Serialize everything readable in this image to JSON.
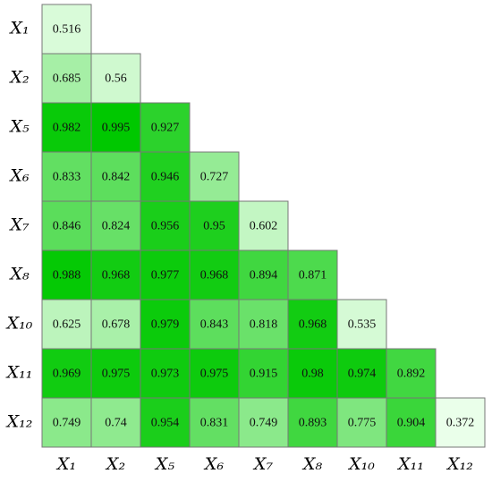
{
  "chart_data": {
    "type": "heatmap",
    "row_labels": [
      "X₁",
      "X₂",
      "X₅",
      "X₆",
      "X₇",
      "X₈",
      "X₁₀",
      "X₁₁",
      "X₁₂"
    ],
    "col_labels": [
      "X₁",
      "X₂",
      "X₅",
      "X₆",
      "X₇",
      "X₈",
      "X₁₀",
      "X₁₁",
      "X₁₂"
    ],
    "values": [
      [
        0.516
      ],
      [
        0.685,
        0.56
      ],
      [
        0.982,
        0.995,
        0.927
      ],
      [
        0.833,
        0.842,
        0.946,
        0.727
      ],
      [
        0.846,
        0.824,
        0.956,
        0.95,
        0.602
      ],
      [
        0.988,
        0.968,
        0.977,
        0.968,
        0.894,
        0.871
      ],
      [
        0.625,
        0.678,
        0.979,
        0.843,
        0.818,
        0.968,
        0.535
      ],
      [
        0.969,
        0.975,
        0.973,
        0.975,
        0.915,
        0.98,
        0.974,
        0.892
      ],
      [
        0.749,
        0.74,
        0.954,
        0.831,
        0.749,
        0.893,
        0.775,
        0.904,
        0.372
      ]
    ],
    "colors": [
      "#eaffea",
      "#00c800"
    ]
  }
}
